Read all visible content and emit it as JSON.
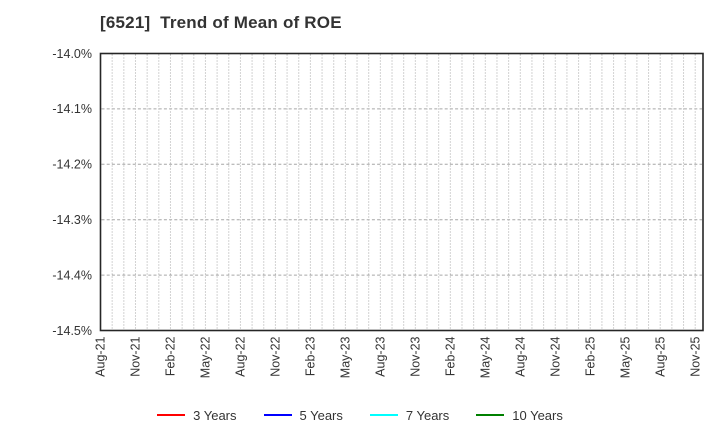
{
  "chart_data": {
    "type": "line",
    "title": "[6521]  Trend of Mean of ROE",
    "xlabel": "",
    "ylabel": "",
    "ylim_percent": [
      -14.5,
      -14.0
    ],
    "y_tick_labels": [
      "-14.0%",
      "-14.1%",
      "-14.2%",
      "-14.3%",
      "-14.4%",
      "-14.5%"
    ],
    "x_tick_labels": [
      "Aug-21",
      "Nov-21",
      "Feb-22",
      "May-22",
      "Aug-22",
      "Nov-22",
      "Feb-23",
      "May-23",
      "Aug-23",
      "Nov-23",
      "Feb-24",
      "May-24",
      "Aug-24",
      "Nov-24",
      "Feb-25",
      "May-25",
      "Aug-25",
      "Nov-25"
    ],
    "x_months_per_labeled_tick": 3,
    "grid": true,
    "grid_vertical_style": "dotted-monthly",
    "grid_horizontal_style": "dashed",
    "legend_position": "bottom-center",
    "series": [
      {
        "name": "3 Years",
        "color": "#ff0000",
        "values": []
      },
      {
        "name": "5 Years",
        "color": "#0000ff",
        "values": []
      },
      {
        "name": "7 Years",
        "color": "#00ffff",
        "values": []
      },
      {
        "name": "10 Years",
        "color": "#008000",
        "values": []
      }
    ]
  },
  "colors": {
    "axis_frame": "#262626",
    "gridline": "#a6a6a6",
    "tick_text": "#333333",
    "title_text": "#333333",
    "background": "#ffffff"
  }
}
